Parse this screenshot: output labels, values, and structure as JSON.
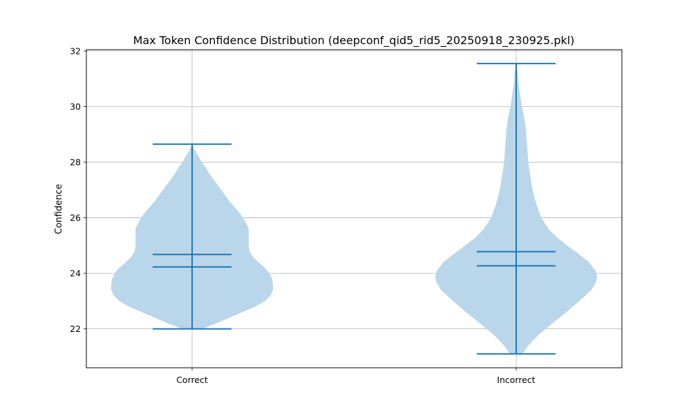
{
  "chart_data": {
    "type": "violin",
    "title": "Max Token Confidence Distribution (deepconf_qid5_rid5_20250918_230925.pkl)",
    "xlabel": "",
    "ylabel": "Confidence",
    "categories": [
      "Correct",
      "Incorrect"
    ],
    "yticks": [
      22,
      24,
      26,
      28,
      30,
      32
    ],
    "ylim": [
      20.6,
      32.05
    ],
    "grid": true,
    "color": "#1f77b4",
    "fill_color": "#bad6ea",
    "series": [
      {
        "category": "Correct",
        "min": 22.0,
        "max": 28.65,
        "mean": 24.68,
        "median": 24.23,
        "density": [
          [
            22.0,
            0.12
          ],
          [
            22.2,
            0.3
          ],
          [
            22.4,
            0.46
          ],
          [
            22.6,
            0.62
          ],
          [
            22.8,
            0.78
          ],
          [
            23.0,
            0.9
          ],
          [
            23.2,
            0.97
          ],
          [
            23.4,
            1.0
          ],
          [
            23.6,
            1.0
          ],
          [
            23.8,
            0.99
          ],
          [
            24.0,
            0.96
          ],
          [
            24.2,
            0.9
          ],
          [
            24.4,
            0.82
          ],
          [
            24.6,
            0.75
          ],
          [
            24.8,
            0.71
          ],
          [
            25.0,
            0.7
          ],
          [
            25.2,
            0.7
          ],
          [
            25.4,
            0.7
          ],
          [
            25.6,
            0.7
          ],
          [
            25.8,
            0.67
          ],
          [
            26.0,
            0.63
          ],
          [
            26.2,
            0.58
          ],
          [
            26.4,
            0.52
          ],
          [
            26.6,
            0.46
          ],
          [
            26.8,
            0.41
          ],
          [
            27.0,
            0.36
          ],
          [
            27.2,
            0.31
          ],
          [
            27.4,
            0.26
          ],
          [
            27.6,
            0.21
          ],
          [
            27.8,
            0.17
          ],
          [
            28.0,
            0.12
          ],
          [
            28.2,
            0.08
          ],
          [
            28.4,
            0.04
          ],
          [
            28.65,
            0.0
          ]
        ]
      },
      {
        "category": "Incorrect",
        "min": 21.1,
        "max": 31.55,
        "mean": 24.78,
        "median": 24.27,
        "density": [
          [
            21.1,
            0.08
          ],
          [
            21.4,
            0.15
          ],
          [
            21.8,
            0.28
          ],
          [
            22.2,
            0.45
          ],
          [
            22.6,
            0.62
          ],
          [
            23.0,
            0.78
          ],
          [
            23.4,
            0.93
          ],
          [
            23.7,
            0.99
          ],
          [
            23.9,
            1.0
          ],
          [
            24.1,
            0.98
          ],
          [
            24.4,
            0.9
          ],
          [
            24.7,
            0.77
          ],
          [
            25.0,
            0.63
          ],
          [
            25.3,
            0.5
          ],
          [
            25.6,
            0.4
          ],
          [
            26.0,
            0.31
          ],
          [
            26.4,
            0.26
          ],
          [
            26.8,
            0.22
          ],
          [
            27.2,
            0.19
          ],
          [
            27.6,
            0.17
          ],
          [
            28.0,
            0.15
          ],
          [
            28.4,
            0.14
          ],
          [
            28.8,
            0.13
          ],
          [
            29.2,
            0.12
          ],
          [
            29.6,
            0.1
          ],
          [
            30.0,
            0.07
          ],
          [
            30.4,
            0.05
          ],
          [
            30.8,
            0.03
          ],
          [
            31.2,
            0.02
          ],
          [
            31.55,
            0.0
          ]
        ]
      }
    ]
  }
}
